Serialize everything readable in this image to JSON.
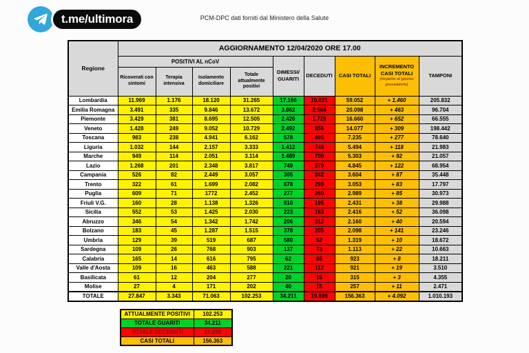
{
  "brand": {
    "channel": "t.me/ultimora",
    "telegram_blue": "#32a7dd",
    "source_caption": "PCM-DPC dati forniti dal Ministero della Salute"
  },
  "colors": {
    "yellow": "#fef200",
    "green": "#00d22b",
    "red": "#fb0505",
    "red_text": "#7f1400",
    "orange": "#fcbf06",
    "header_gray": "#d9d9d9",
    "note_brown": "#9c3a00"
  },
  "chart_data": {
    "type": "table",
    "title": "AGGIORNAMENTO 12/04/2020 ORE 17.00",
    "region_header": "Regione",
    "group_header": "POSITIVI AL nCoV",
    "sub_headers": [
      "Ricoverati con sintomi",
      "Terapia intensiva",
      "Isolamento domiciliare",
      "Totale attualmente positivi"
    ],
    "col_headers": [
      "DIMESSI/\nGUARITI",
      "DECEDUTI",
      "CASI TOTALI",
      "INCREMENTO\nCASI  TOTALI",
      "TAMPONI"
    ],
    "increment_note": "(rispetto al giorno\nprecedente)",
    "rows": [
      {
        "regione": "Lombardia",
        "values": [
          "11.969",
          "1.176",
          "18.120",
          "31.265",
          "17.166",
          "10.621",
          "59.052",
          "+ 1.460",
          "205.832"
        ]
      },
      {
        "regione": "Emilia Romagna",
        "values": [
          "3.491",
          "335",
          "9.846",
          "13.672",
          "3.862",
          "2.564",
          "20.098",
          "+ 463",
          "96.704"
        ]
      },
      {
        "regione": "Piemonte",
        "values": [
          "3.429",
          "381",
          "8.695",
          "12.505",
          "2.426",
          "1.729",
          "16.660",
          "+ 652",
          "66.555"
        ]
      },
      {
        "regione": "Veneto",
        "values": [
          "1.428",
          "249",
          "9.052",
          "10.729",
          "2.492",
          "856",
          "14.077",
          "+ 309",
          "198.442"
        ]
      },
      {
        "regione": "Toscana",
        "values": [
          "983",
          "238",
          "4.941",
          "6.162",
          "578",
          "495",
          "7.235",
          "+ 277",
          "78.640"
        ]
      },
      {
        "regione": "Liguria",
        "values": [
          "1.032",
          "144",
          "2.157",
          "3.333",
          "1.412",
          "749",
          "5.494",
          "+ 118",
          "21.983"
        ]
      },
      {
        "regione": "Marche",
        "values": [
          "949",
          "114",
          "2.051",
          "3.114",
          "1.489",
          "700",
          "5.303",
          "+ 92",
          "21.057"
        ]
      },
      {
        "regione": "Lazio",
        "values": [
          "1.268",
          "201",
          "2.348",
          "3.817",
          "749",
          "279",
          "4.845",
          "+ 122",
          "68.954"
        ]
      },
      {
        "regione": "Campania",
        "values": [
          "526",
          "82",
          "2.449",
          "3.057",
          "305",
          "242",
          "3.604",
          "+ 87",
          "35.448"
        ]
      },
      {
        "regione": "Trento",
        "values": [
          "322",
          "61",
          "1.699",
          "2.082",
          "678",
          "293",
          "3.053",
          "+ 83",
          "17.797"
        ]
      },
      {
        "regione": "Puglia",
        "values": [
          "609",
          "71",
          "1772",
          "2.452",
          "277",
          "260",
          "2.989",
          "+ 85",
          "30.973"
        ]
      },
      {
        "regione": "Friuli V.G.",
        "values": [
          "160",
          "28",
          "1.138",
          "1.326",
          "910",
          "195",
          "2.431",
          "+ 38",
          "29.988"
        ]
      },
      {
        "regione": "Sicilia",
        "values": [
          "552",
          "53",
          "1.425",
          "2.030",
          "223",
          "163",
          "2.416",
          "+ 52",
          "36.098"
        ]
      },
      {
        "regione": "Abruzzo",
        "values": [
          "346",
          "54",
          "1.342",
          "1.742",
          "206",
          "212",
          "2.160",
          "+ 40",
          "20.594"
        ]
      },
      {
        "regione": "Bolzano",
        "values": [
          "183",
          "45",
          "1.287",
          "1.515",
          "378",
          "205",
          "2.098",
          "+ 141",
          "23.246"
        ]
      },
      {
        "regione": "Umbria",
        "values": [
          "129",
          "39",
          "519",
          "687",
          "580",
          "52",
          "1.319",
          "+ 10",
          "18.672"
        ]
      },
      {
        "regione": "Sardegna",
        "values": [
          "109",
          "26",
          "768",
          "903",
          "137",
          "73",
          "1.113",
          "+ 22",
          "10.663"
        ]
      },
      {
        "regione": "Calabria",
        "values": [
          "165",
          "14",
          "616",
          "795",
          "62",
          "66",
          "923",
          "+ 8",
          "18.211"
        ]
      },
      {
        "regione": "Valle d'Aosta",
        "values": [
          "109",
          "16",
          "463",
          "588",
          "221",
          "112",
          "921",
          "+ 19",
          "3.510"
        ]
      },
      {
        "regione": "Basilicata",
        "values": [
          "61",
          "12",
          "204",
          "277",
          "20",
          "18",
          "315",
          "+ 3",
          "4.355"
        ]
      },
      {
        "regione": "Molise",
        "values": [
          "27",
          "4",
          "171",
          "202",
          "40",
          "15",
          "257",
          "+ 11",
          "2.471"
        ]
      }
    ],
    "total_row": {
      "regione": "TOTALE",
      "values": [
        "27.847",
        "3.343",
        "71.063",
        "102.253",
        "34.211",
        "19.899",
        "156.363",
        "+ 4.092",
        "1.010.193"
      ]
    }
  },
  "summary": {
    "rows": [
      {
        "label": "ATTUALMENTE POSITIVI",
        "value": "102.253",
        "color": "yellow"
      },
      {
        "label": "TOTALE GUARITI",
        "value": "34.211",
        "color": "green"
      },
      {
        "label": "TOTALE DECEDUTI",
        "value": "19.899",
        "color": "red"
      },
      {
        "label": "CASI TOTALI",
        "value": "156.363",
        "color": "orange"
      }
    ]
  }
}
